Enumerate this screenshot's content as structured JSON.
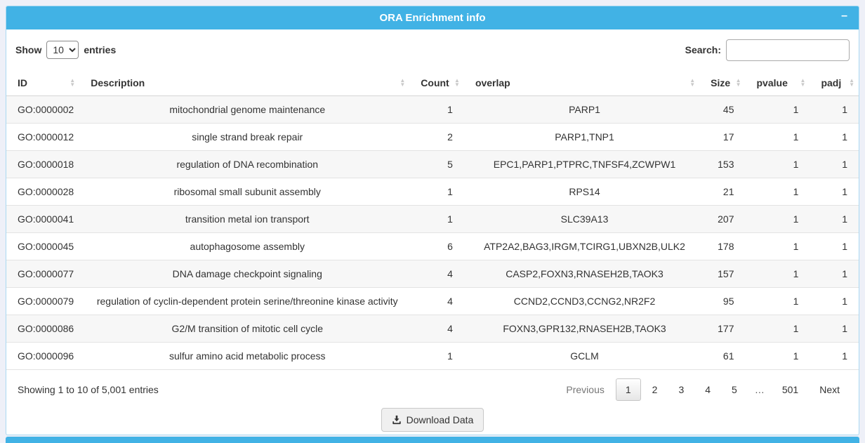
{
  "panel": {
    "title": "ORA Enrichment info",
    "minimize_glyph": "–"
  },
  "controls": {
    "show_label": "Show",
    "entries_label": "entries",
    "page_length": "10",
    "search_label": "Search:",
    "search_value": ""
  },
  "table": {
    "columns": [
      "ID",
      "Description",
      "Count",
      "overlap",
      "Size",
      "pvalue",
      "padj"
    ],
    "rows": [
      [
        "GO:0000002",
        "mitochondrial genome maintenance",
        "1",
        "PARP1",
        "45",
        "1",
        "1"
      ],
      [
        "GO:0000012",
        "single strand break repair",
        "2",
        "PARP1,TNP1",
        "17",
        "1",
        "1"
      ],
      [
        "GO:0000018",
        "regulation of DNA recombination",
        "5",
        "EPC1,PARP1,PTPRC,TNFSF4,ZCWPW1",
        "153",
        "1",
        "1"
      ],
      [
        "GO:0000028",
        "ribosomal small subunit assembly",
        "1",
        "RPS14",
        "21",
        "1",
        "1"
      ],
      [
        "GO:0000041",
        "transition metal ion transport",
        "1",
        "SLC39A13",
        "207",
        "1",
        "1"
      ],
      [
        "GO:0000045",
        "autophagosome assembly",
        "6",
        "ATP2A2,BAG3,IRGM,TCIRG1,UBXN2B,ULK2",
        "178",
        "1",
        "1"
      ],
      [
        "GO:0000077",
        "DNA damage checkpoint signaling",
        "4",
        "CASP2,FOXN3,RNASEH2B,TAOK3",
        "157",
        "1",
        "1"
      ],
      [
        "GO:0000079",
        "regulation of cyclin-dependent protein serine/threonine kinase activity",
        "4",
        "CCND2,CCND3,CCNG2,NR2F2",
        "95",
        "1",
        "1"
      ],
      [
        "GO:0000086",
        "G2/M transition of mitotic cell cycle",
        "4",
        "FOXN3,GPR132,RNASEH2B,TAOK3",
        "177",
        "1",
        "1"
      ],
      [
        "GO:0000096",
        "sulfur amino acid metabolic process",
        "1",
        "GCLM",
        "61",
        "1",
        "1"
      ]
    ]
  },
  "footer": {
    "info": "Showing 1 to 10 of 5,001 entries",
    "pagination": {
      "previous_label": "Previous",
      "pages": [
        "1",
        "2",
        "3",
        "4",
        "5",
        "…",
        "501"
      ],
      "current_page": "1",
      "next_label": "Next"
    },
    "download_label": "Download Data"
  },
  "colors": {
    "accent_blue": "#41b2e5",
    "page_background": "#eef0f8",
    "panel_border": "#a9d9f2",
    "row_stripe": "#f7f7f7"
  }
}
